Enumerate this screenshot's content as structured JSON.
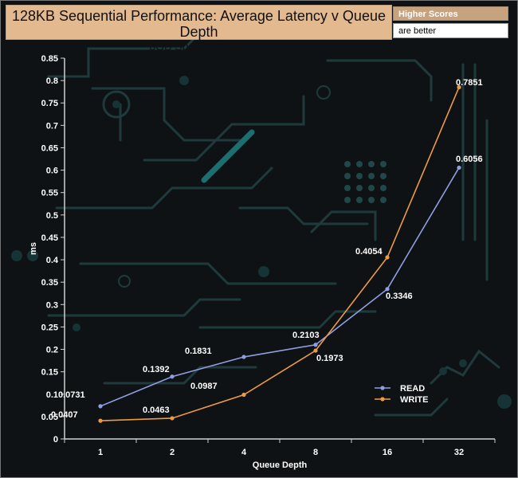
{
  "header": {
    "title": "128KB Sequential Performance: Average Latency v Queue Depth",
    "subtitle": "8GB Span 1 Thread"
  },
  "badge": {
    "line1": "Higher Scores",
    "line2": "are better"
  },
  "colors": {
    "read": "#8f9ee0",
    "write": "#ef9a42",
    "title_bg": "#e3b98f",
    "background": "#0f1214",
    "circuit": "#1f3a3d"
  },
  "chart_data": {
    "type": "line",
    "title": "128KB Sequential Performance: Average Latency v Queue Depth",
    "subtitle": "8GB Span 1 Thread",
    "xlabel": "Queue Depth",
    "ylabel": "ms",
    "categories": [
      "1",
      "2",
      "4",
      "8",
      "16",
      "32"
    ],
    "ylim": [
      0,
      0.85
    ],
    "yticks": [
      "0",
      "0.05",
      "0.1",
      "0.15",
      "0.2",
      "0.25",
      "0.3",
      "0.35",
      "0.4",
      "0.45",
      "0.5",
      "0.55",
      "0.6",
      "0.65",
      "0.7",
      "0.75",
      "0.8",
      "0.85"
    ],
    "grid": false,
    "legend_position": "bottom-right",
    "series": [
      {
        "name": "READ",
        "values": [
          0.0731,
          0.1392,
          0.1831,
          0.2103,
          0.3346,
          0.6056
        ]
      },
      {
        "name": "WRITE",
        "values": [
          0.0407,
          0.0463,
          0.0987,
          0.1973,
          0.4054,
          0.7851
        ]
      }
    ]
  }
}
